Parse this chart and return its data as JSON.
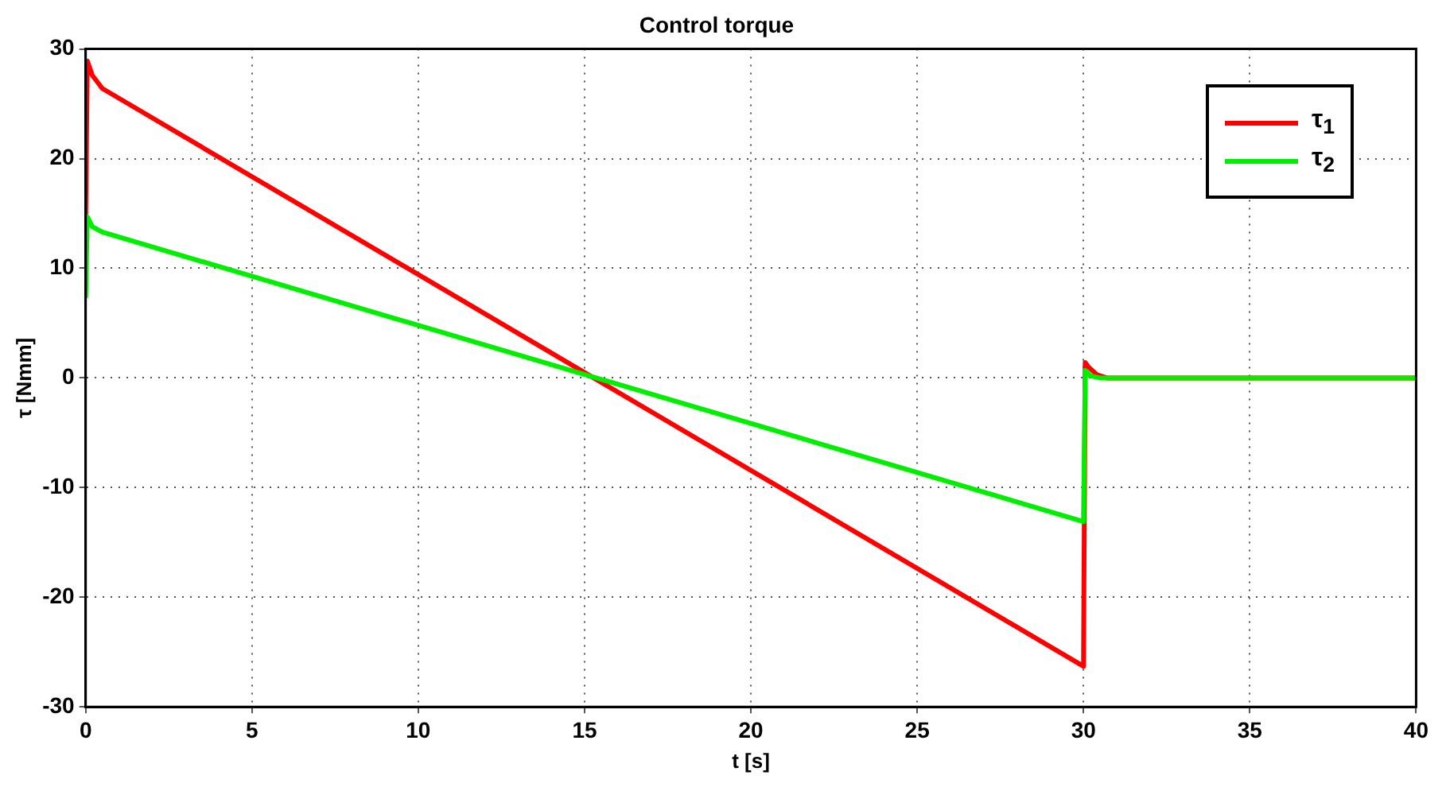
{
  "chart_data": {
    "type": "line",
    "title": "Control torque",
    "xlabel": "t [s]",
    "ylabel": "τ [Nmm]",
    "xlim": [
      0,
      40
    ],
    "xticks": [
      0,
      5,
      10,
      15,
      20,
      25,
      30,
      35,
      40
    ],
    "ylim": [
      -30,
      30
    ],
    "yticks": [
      -30,
      -20,
      -10,
      0,
      10,
      20,
      30
    ],
    "grid": true,
    "legend": "top right",
    "marker": "none",
    "line_style": "solid",
    "series": [
      {
        "name": "τ$_{1}$",
        "color": "#ff0000",
        "x": [
          0,
          0.05,
          0.2,
          0.5,
          30,
          30.05,
          30.15,
          30.4,
          30.7,
          40
        ],
        "values": [
          14.7,
          28.9,
          27.6,
          26.4,
          -26.3,
          1.4,
          1.0,
          0.3,
          0,
          0
        ]
      },
      {
        "name": "τ$_{2}$",
        "color": "#00ee00",
        "x": [
          0,
          0.05,
          0.2,
          0.5,
          30,
          30.05,
          30.2,
          30.5,
          40
        ],
        "values": [
          7.3,
          14.7,
          13.8,
          13.3,
          -13.1,
          0.7,
          0.2,
          0,
          0
        ]
      }
    ]
  }
}
